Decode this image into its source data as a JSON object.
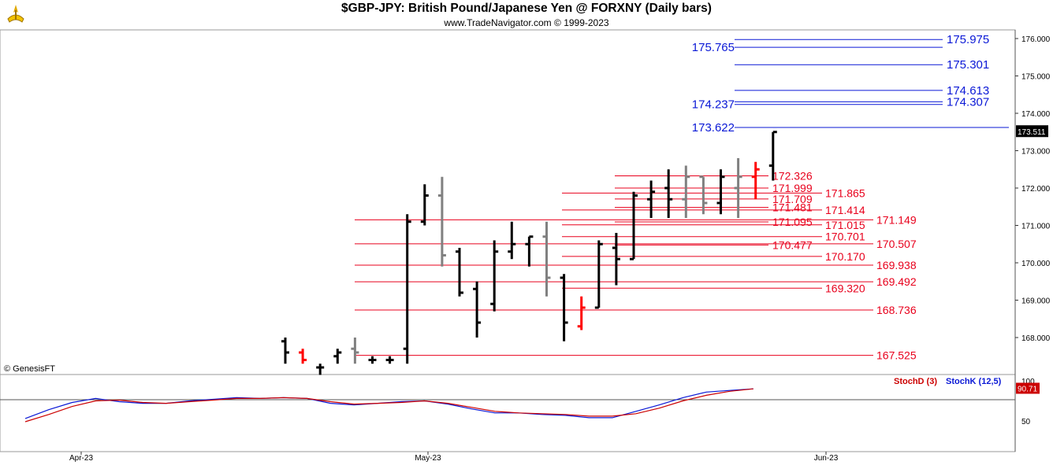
{
  "header": {
    "title": "$GBP-JPY:  British Pound/Japanese Yen @ FORXNY  (Daily bars)",
    "subtitle": "www.TradeNavigator.com © 1999-2023"
  },
  "watermark": "© GenesisFT",
  "colors": {
    "bar_up": "#000000",
    "bar_gray": "#808080",
    "bar_red": "#ff0000",
    "level_red": "#e8001c",
    "level_blue": "#0a18d6",
    "stoch_d": "#cc0000",
    "stoch_k": "#0a18d6",
    "grid": "#dddddd"
  },
  "chart_data": [
    {
      "type": "ohlc",
      "title": "$GBP-JPY:  British Pound/Japanese Yen @ FORXNY  (Daily bars)",
      "x_axis": {
        "labels": [
          "Apr-23",
          "May-23",
          "Jun-23"
        ]
      },
      "y_axis": {
        "ticks": [
          "168.000",
          "169.000",
          "170.000",
          "171.000",
          "172.000",
          "173.000",
          "174.000",
          "175.000",
          "176.000"
        ],
        "ylim": [
          167.4,
          176.1
        ],
        "last_price_label": "173.511"
      },
      "bars": [
        {
          "o": 167.9,
          "h": 168.0,
          "l": 167.3,
          "c": 167.6,
          "color": "black"
        },
        {
          "o": 167.6,
          "h": 167.7,
          "l": 167.3,
          "c": 167.4,
          "color": "red"
        },
        {
          "o": 167.2,
          "h": 167.3,
          "l": 167.0,
          "c": 167.2,
          "color": "black"
        },
        {
          "o": 167.5,
          "h": 167.7,
          "l": 167.3,
          "c": 167.6,
          "color": "black"
        },
        {
          "o": 167.7,
          "h": 168.0,
          "l": 167.3,
          "c": 167.6,
          "color": "gray"
        },
        {
          "o": 167.4,
          "h": 167.5,
          "l": 167.3,
          "c": 167.4,
          "color": "black"
        },
        {
          "o": 167.4,
          "h": 167.5,
          "l": 167.3,
          "c": 167.4,
          "color": "black"
        },
        {
          "o": 167.7,
          "h": 171.3,
          "l": 167.3,
          "c": 171.1,
          "color": "black"
        },
        {
          "o": 171.1,
          "h": 172.1,
          "l": 171.0,
          "c": 171.8,
          "color": "black"
        },
        {
          "o": 171.8,
          "h": 172.3,
          "l": 169.9,
          "c": 170.2,
          "color": "gray"
        },
        {
          "o": 170.3,
          "h": 170.4,
          "l": 169.1,
          "c": 169.2,
          "color": "black"
        },
        {
          "o": 169.3,
          "h": 169.5,
          "l": 168.0,
          "c": 168.4,
          "color": "black"
        },
        {
          "o": 168.9,
          "h": 170.6,
          "l": 168.7,
          "c": 170.3,
          "color": "black"
        },
        {
          "o": 170.3,
          "h": 171.1,
          "l": 170.1,
          "c": 170.5,
          "color": "black"
        },
        {
          "o": 170.5,
          "h": 170.7,
          "l": 169.9,
          "c": 170.7,
          "color": "black"
        },
        {
          "o": 170.7,
          "h": 171.1,
          "l": 169.1,
          "c": 169.6,
          "color": "gray"
        },
        {
          "o": 169.6,
          "h": 169.7,
          "l": 167.9,
          "c": 168.4,
          "color": "black"
        },
        {
          "o": 168.3,
          "h": 169.1,
          "l": 168.2,
          "c": 168.8,
          "color": "red"
        },
        {
          "o": 168.8,
          "h": 170.6,
          "l": 168.8,
          "c": 170.5,
          "color": "black"
        },
        {
          "o": 170.4,
          "h": 170.8,
          "l": 169.4,
          "c": 170.1,
          "color": "black"
        },
        {
          "o": 170.1,
          "h": 171.9,
          "l": 170.1,
          "c": 171.8,
          "color": "black"
        },
        {
          "o": 171.7,
          "h": 172.2,
          "l": 171.2,
          "c": 171.9,
          "color": "black"
        },
        {
          "o": 172.0,
          "h": 172.5,
          "l": 171.2,
          "c": 171.7,
          "color": "black"
        },
        {
          "o": 171.7,
          "h": 172.6,
          "l": 171.2,
          "c": 172.3,
          "color": "gray"
        },
        {
          "o": 172.3,
          "h": 172.3,
          "l": 171.3,
          "c": 171.6,
          "color": "gray"
        },
        {
          "o": 171.6,
          "h": 172.5,
          "l": 171.3,
          "c": 172.3,
          "color": "black"
        },
        {
          "o": 172.0,
          "h": 172.8,
          "l": 171.2,
          "c": 172.3,
          "color": "gray"
        },
        {
          "o": 172.3,
          "h": 172.7,
          "l": 171.7,
          "c": 172.5,
          "color": "red"
        },
        {
          "o": 172.6,
          "h": 173.5,
          "l": 172.2,
          "c": 173.5,
          "color": "black"
        }
      ],
      "levels_red": [
        {
          "value": 172.326,
          "label": "172.326"
        },
        {
          "value": 171.999,
          "label": "171.999"
        },
        {
          "value": 171.865,
          "label": "171.865"
        },
        {
          "value": 171.709,
          "label": "171.709"
        },
        {
          "value": 171.481,
          "label": "171.481"
        },
        {
          "value": 171.414,
          "label": "171.414"
        },
        {
          "value": 171.149,
          "label": "171.149"
        },
        {
          "value": 171.095,
          "label": "171.095"
        },
        {
          "value": 171.015,
          "label": "171.015"
        },
        {
          "value": 170.701,
          "label": "170.701"
        },
        {
          "value": 170.507,
          "label": "170.507"
        },
        {
          "value": 170.477,
          "label": "170.477"
        },
        {
          "value": 170.17,
          "label": "170.170"
        },
        {
          "value": 169.938,
          "label": "169.938"
        },
        {
          "value": 169.492,
          "label": "169.492"
        },
        {
          "value": 169.32,
          "label": "169.320"
        },
        {
          "value": 168.736,
          "label": "168.736"
        },
        {
          "value": 167.525,
          "label": "167.525"
        }
      ],
      "levels_blue": [
        {
          "value": 175.975,
          "label": "175.975"
        },
        {
          "value": 175.765,
          "label": "175.765"
        },
        {
          "value": 175.301,
          "label": "175.301"
        },
        {
          "value": 174.613,
          "label": "174.613"
        },
        {
          "value": 174.307,
          "label": "174.307"
        },
        {
          "value": 174.237,
          "label": "174.237"
        },
        {
          "value": 173.622,
          "label": "173.622"
        }
      ]
    },
    {
      "type": "line",
      "title": "",
      "legend": [
        "StochD (3)",
        "StochK (12,5)"
      ],
      "y_axis": {
        "ticks": [
          "100",
          "50"
        ],
        "ylim": [
          30,
          100
        ],
        "last_value_label": "90.71"
      },
      "series": [
        {
          "name": "StochK (12,5)",
          "values": [
            53,
            64,
            73,
            78,
            74,
            72,
            72,
            75,
            77,
            79,
            78,
            79,
            78,
            72,
            70,
            72,
            74,
            75,
            71,
            65,
            60,
            60,
            58,
            57,
            54,
            54,
            62,
            70,
            79,
            86,
            88,
            90
          ]
        },
        {
          "name": "StochD (3)",
          "values": [
            49,
            58,
            68,
            75,
            76,
            73,
            72,
            74,
            76,
            78,
            78,
            79,
            78,
            74,
            71,
            72,
            73,
            75,
            72,
            67,
            62,
            60,
            59,
            58,
            56,
            56,
            59,
            66,
            75,
            82,
            87,
            90
          ]
        }
      ]
    }
  ]
}
